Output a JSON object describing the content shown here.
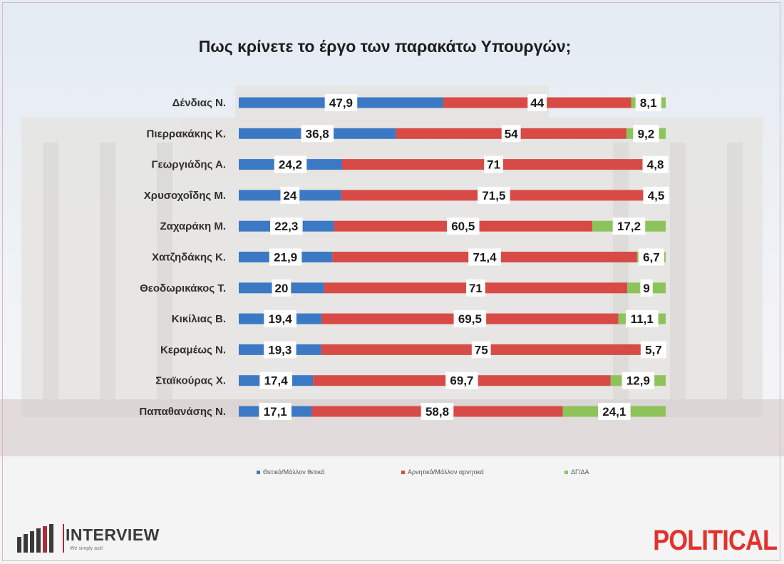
{
  "chart_data": {
    "type": "bar",
    "orientation": "horizontal",
    "stacked": true,
    "title": "Πως κρίνετε το έργο των παρακάτω Υπουργών;",
    "categories": [
      "Δένδιας Ν.",
      "Πιερρακάκης Κ.",
      "Γεωργιάδης Α.",
      "Χρυσοχοΐδης Μ.",
      "Ζαχαράκη Μ.",
      "Χατζηδάκης Κ.",
      "Θεοδωρικάκος Τ.",
      "Κικίλιας Β.",
      "Κεραμέως Ν.",
      "Σταϊκούρας Χ.",
      "Παπαθανάσης Ν."
    ],
    "series": [
      {
        "name": "Θετικά/Μάλλον θετικά",
        "color": "#3b79c4",
        "values": [
          47.9,
          36.8,
          24.2,
          24,
          22.3,
          21.9,
          20,
          19.4,
          19.3,
          17.4,
          17.1
        ],
        "labels": [
          "47,9",
          "36,8",
          "24,2",
          "24",
          "22,3",
          "21,9",
          "20",
          "19,4",
          "19,3",
          "17,4",
          "17,1"
        ]
      },
      {
        "name": "Αρνητικά/Μάλλον αρνητικά",
        "color": "#d84a45",
        "values": [
          44,
          54,
          71,
          71.5,
          60.5,
          71.4,
          71,
          69.5,
          75,
          69.7,
          58.8
        ],
        "labels": [
          "44",
          "54",
          "71",
          "71,5",
          "60,5",
          "71,4",
          "71",
          "69,5",
          "75",
          "69,7",
          "58,8"
        ]
      },
      {
        "name": "ΔΓ/ΔΑ",
        "color": "#8dc35a",
        "values": [
          8.1,
          9.2,
          4.8,
          4.5,
          17.2,
          6.7,
          9,
          11.1,
          5.7,
          12.9,
          24.1
        ],
        "labels": [
          "8,1",
          "9,2",
          "4,8",
          "4,5",
          "17,2",
          "6,7",
          "9",
          "11,1",
          "5,7",
          "12,9",
          "24,1"
        ]
      }
    ],
    "xlim": [
      0,
      100
    ],
    "grid": false,
    "legend_position": "bottom"
  },
  "branding": {
    "left_name": "INTERVIEW",
    "left_slogan": "We simply ask!",
    "right_name": "POLITICAL"
  },
  "colors": {
    "positive": "#3b79c4",
    "negative": "#d84a45",
    "dont_know": "#8dc35a",
    "political_red": "#e2322c"
  }
}
